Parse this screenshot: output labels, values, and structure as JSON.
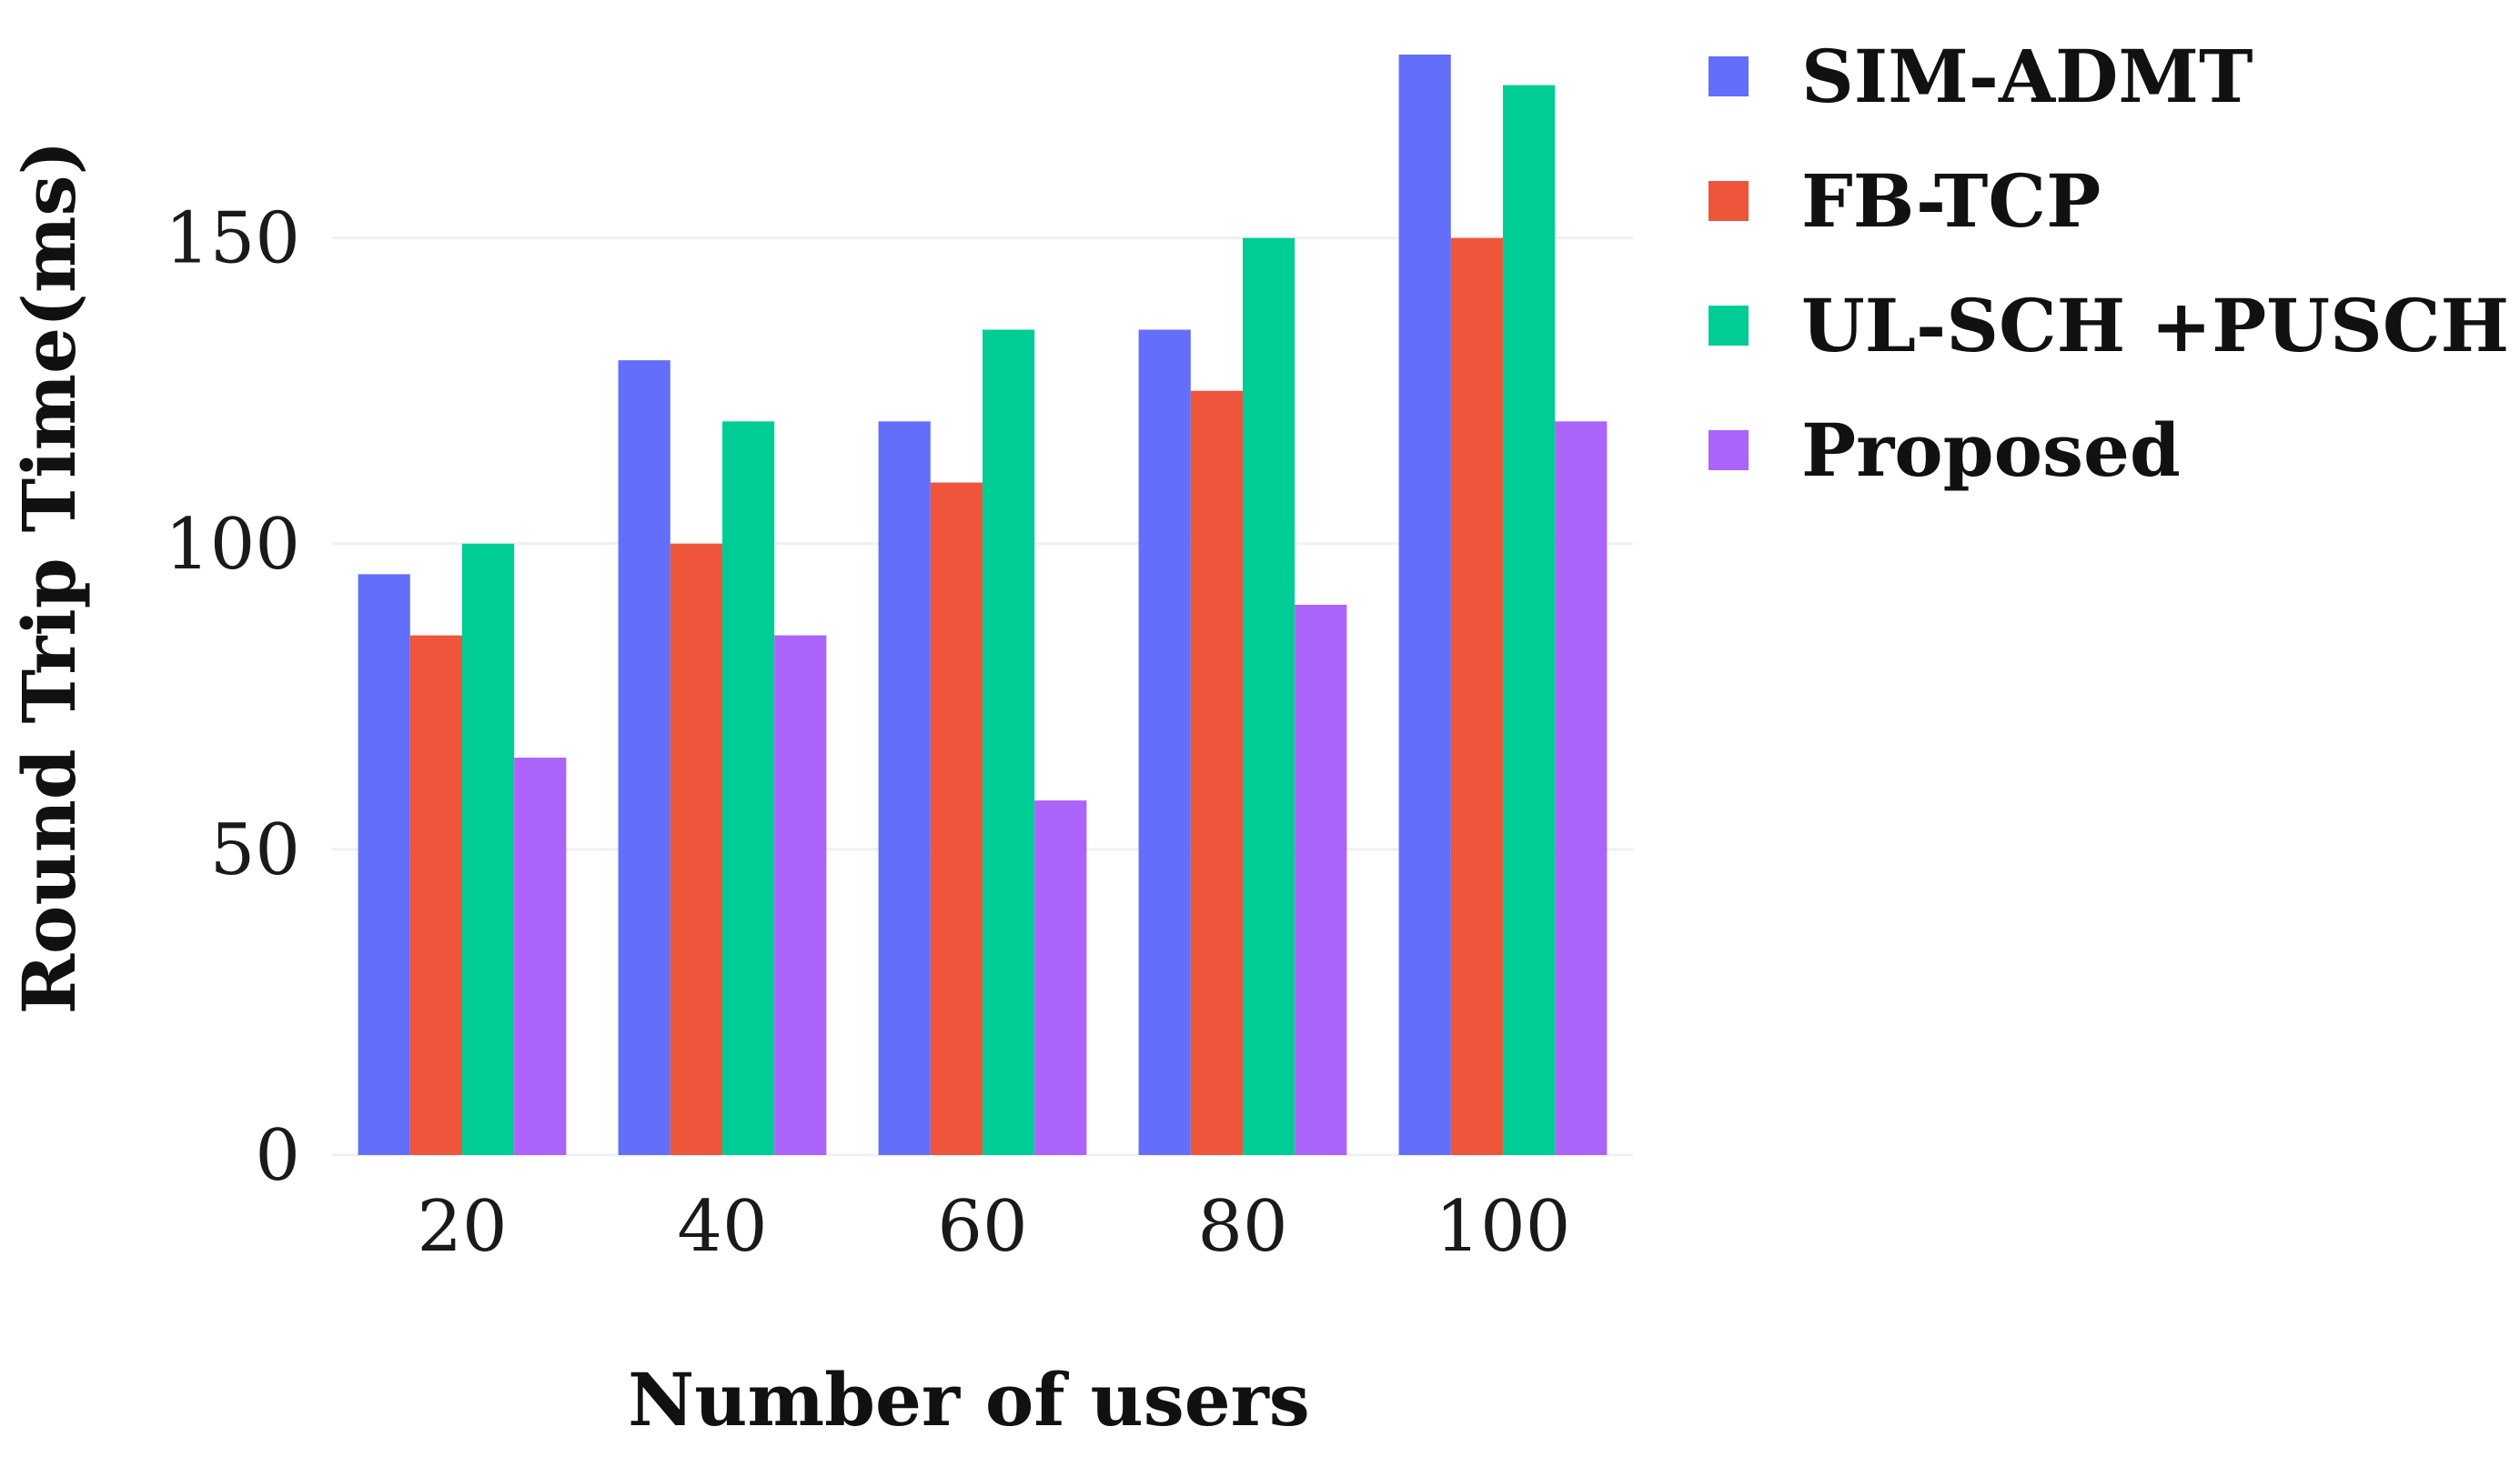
{
  "chart_data": {
    "type": "bar",
    "title": "",
    "xlabel": "Number of users",
    "ylabel": "Round Trip Time(ms)",
    "categories": [
      "20",
      "40",
      "60",
      "80",
      "100"
    ],
    "ylim": [
      0,
      180
    ],
    "yticks": [
      0,
      50,
      100,
      150
    ],
    "grid": true,
    "legend_position": "top-right outside",
    "series": [
      {
        "name": "SIM-ADMT",
        "color": "#636efa",
        "values": [
          95,
          130,
          120,
          135,
          180
        ]
      },
      {
        "name": "FB-TCP",
        "color": "#ef553b",
        "values": [
          85,
          100,
          110,
          125,
          150
        ]
      },
      {
        "name": "UL-SCH +PUSCH",
        "color": "#00cc96",
        "values": [
          100,
          120,
          135,
          150,
          175
        ]
      },
      {
        "name": "Proposed",
        "color": "#ab63fa",
        "values": [
          65,
          85,
          58,
          90,
          120
        ]
      }
    ]
  }
}
